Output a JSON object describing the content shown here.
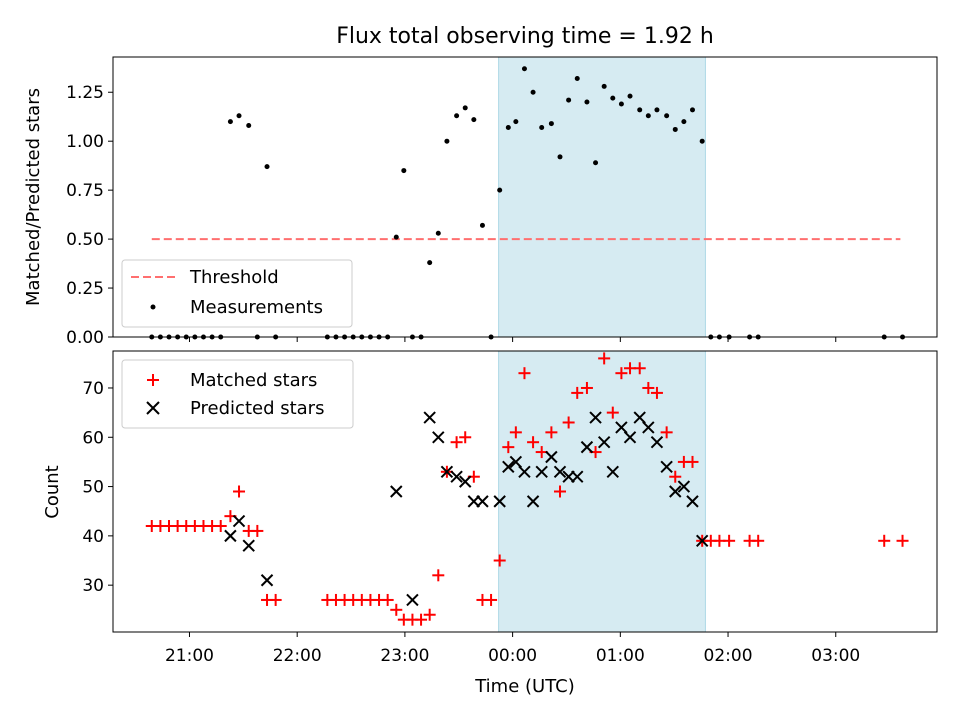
{
  "figure": {
    "title": "Flux total observing time = 1.92 h",
    "xlabel": "Time (UTC)",
    "x_ticks": [
      "21:00",
      "22:00",
      "23:00",
      "00:00",
      "01:00",
      "02:00",
      "03:00"
    ],
    "x_tick_hours": [
      21,
      22,
      23,
      24,
      25,
      26,
      27
    ],
    "x_range_hours": [
      20.29,
      27.94
    ],
    "shaded_interval_hours": [
      23.87,
      25.79
    ],
    "shade_color": "#add8e6"
  },
  "chart_data": [
    {
      "type": "scatter",
      "panel": "top",
      "ylabel": "Matched/Predicted stars",
      "ylim": [
        0,
        1.43
      ],
      "y_ticks": [
        "0.00",
        "0.25",
        "0.50",
        "0.75",
        "1.00",
        "1.25"
      ],
      "y_tick_values": [
        0,
        0.25,
        0.5,
        0.75,
        1.0,
        1.25
      ],
      "legend": {
        "placement": "lower-left",
        "threshold_label": "Threshold",
        "measurements_label": "Measurements"
      },
      "threshold": {
        "name": "Threshold",
        "value": 0.5,
        "x_range": [
          20.65,
          27.6
        ],
        "color": "#ff6f6f",
        "style": "dashed"
      },
      "series": [
        {
          "name": "Measurements",
          "color": "#000000",
          "points": [
            [
              20.65,
              0
            ],
            [
              20.73,
              0
            ],
            [
              20.81,
              0
            ],
            [
              20.89,
              0
            ],
            [
              20.97,
              0
            ],
            [
              21.05,
              0
            ],
            [
              21.13,
              0
            ],
            [
              21.21,
              0
            ],
            [
              21.29,
              0
            ],
            [
              21.38,
              1.1
            ],
            [
              21.46,
              1.13
            ],
            [
              21.55,
              1.08
            ],
            [
              21.63,
              0
            ],
            [
              21.72,
              0.87
            ],
            [
              21.8,
              0
            ],
            [
              22.28,
              0
            ],
            [
              22.36,
              0
            ],
            [
              22.44,
              0
            ],
            [
              22.52,
              0
            ],
            [
              22.6,
              0
            ],
            [
              22.68,
              0
            ],
            [
              22.76,
              0
            ],
            [
              22.84,
              0
            ],
            [
              22.92,
              0.51
            ],
            [
              22.99,
              0.85
            ],
            [
              23.07,
              0
            ],
            [
              23.15,
              0
            ],
            [
              23.23,
              0.38
            ],
            [
              23.31,
              0.53
            ],
            [
              23.39,
              1.0
            ],
            [
              23.48,
              1.13
            ],
            [
              23.56,
              1.17
            ],
            [
              23.64,
              1.11
            ],
            [
              23.72,
              0.57
            ],
            [
              23.8,
              0
            ],
            [
              23.88,
              0.75
            ],
            [
              23.96,
              1.07
            ],
            [
              24.03,
              1.1
            ],
            [
              24.11,
              1.37
            ],
            [
              24.19,
              1.25
            ],
            [
              24.27,
              1.07
            ],
            [
              24.36,
              1.09
            ],
            [
              24.44,
              0.92
            ],
            [
              24.52,
              1.21
            ],
            [
              24.6,
              1.32
            ],
            [
              24.69,
              1.2
            ],
            [
              24.77,
              0.89
            ],
            [
              24.85,
              1.28
            ],
            [
              24.93,
              1.22
            ],
            [
              25.01,
              1.19
            ],
            [
              25.09,
              1.23
            ],
            [
              25.18,
              1.16
            ],
            [
              25.26,
              1.13
            ],
            [
              25.34,
              1.16
            ],
            [
              25.43,
              1.13
            ],
            [
              25.51,
              1.06
            ],
            [
              25.59,
              1.1
            ],
            [
              25.67,
              1.16
            ],
            [
              25.76,
              1.0
            ],
            [
              25.84,
              0
            ],
            [
              25.92,
              0
            ],
            [
              26.01,
              0
            ],
            [
              26.2,
              0
            ],
            [
              26.28,
              0
            ],
            [
              27.45,
              0
            ],
            [
              27.62,
              0
            ]
          ]
        }
      ]
    },
    {
      "type": "scatter",
      "panel": "bottom",
      "ylabel": "Count",
      "ylim": [
        20.5,
        77.5
      ],
      "y_ticks": [
        "30",
        "40",
        "50",
        "60",
        "70"
      ],
      "y_tick_values": [
        30,
        40,
        50,
        60,
        70
      ],
      "legend": {
        "placement": "upper-left",
        "matched_label": "Matched stars",
        "predicted_label": "Predicted stars"
      },
      "series": [
        {
          "name": "Matched stars",
          "marker": "plus",
          "color": "#ff0000",
          "points": [
            [
              20.65,
              42
            ],
            [
              20.73,
              42
            ],
            [
              20.81,
              42
            ],
            [
              20.89,
              42
            ],
            [
              20.97,
              42
            ],
            [
              21.05,
              42
            ],
            [
              21.13,
              42
            ],
            [
              21.21,
              42
            ],
            [
              21.29,
              42
            ],
            [
              21.38,
              44
            ],
            [
              21.46,
              49
            ],
            [
              21.55,
              41
            ],
            [
              21.63,
              41
            ],
            [
              21.72,
              27
            ],
            [
              21.8,
              27
            ],
            [
              22.28,
              27
            ],
            [
              22.36,
              27
            ],
            [
              22.44,
              27
            ],
            [
              22.52,
              27
            ],
            [
              22.6,
              27
            ],
            [
              22.68,
              27
            ],
            [
              22.76,
              27
            ],
            [
              22.84,
              27
            ],
            [
              22.92,
              25
            ],
            [
              22.99,
              23
            ],
            [
              23.07,
              23
            ],
            [
              23.15,
              23
            ],
            [
              23.23,
              24
            ],
            [
              23.31,
              32
            ],
            [
              23.39,
              53
            ],
            [
              23.48,
              59
            ],
            [
              23.56,
              60
            ],
            [
              23.64,
              52
            ],
            [
              23.72,
              27
            ],
            [
              23.8,
              27
            ],
            [
              23.88,
              35
            ],
            [
              23.96,
              58
            ],
            [
              24.03,
              61
            ],
            [
              24.11,
              73
            ],
            [
              24.19,
              59
            ],
            [
              24.27,
              57
            ],
            [
              24.36,
              61
            ],
            [
              24.44,
              49
            ],
            [
              24.52,
              63
            ],
            [
              24.6,
              69
            ],
            [
              24.69,
              70
            ],
            [
              24.77,
              57
            ],
            [
              24.85,
              76
            ],
            [
              24.93,
              65
            ],
            [
              25.01,
              73
            ],
            [
              25.09,
              74
            ],
            [
              25.18,
              74
            ],
            [
              25.26,
              70
            ],
            [
              25.34,
              69
            ],
            [
              25.43,
              61
            ],
            [
              25.51,
              52
            ],
            [
              25.59,
              55
            ],
            [
              25.67,
              55
            ],
            [
              25.76,
              39
            ],
            [
              25.84,
              39
            ],
            [
              25.92,
              39
            ],
            [
              26.01,
              39
            ],
            [
              26.2,
              39
            ],
            [
              26.28,
              39
            ],
            [
              27.45,
              39
            ],
            [
              27.62,
              39
            ]
          ]
        },
        {
          "name": "Predicted stars",
          "marker": "x",
          "color": "#000000",
          "points": [
            [
              21.38,
              40
            ],
            [
              21.46,
              43
            ],
            [
              21.55,
              38
            ],
            [
              21.72,
              31
            ],
            [
              22.92,
              49
            ],
            [
              23.07,
              27
            ],
            [
              23.23,
              64
            ],
            [
              23.31,
              60
            ],
            [
              23.39,
              53
            ],
            [
              23.48,
              52
            ],
            [
              23.56,
              51
            ],
            [
              23.64,
              47
            ],
            [
              23.72,
              47
            ],
            [
              23.88,
              47
            ],
            [
              23.96,
              54
            ],
            [
              24.03,
              55
            ],
            [
              24.11,
              53
            ],
            [
              24.19,
              47
            ],
            [
              24.27,
              53
            ],
            [
              24.36,
              56
            ],
            [
              24.44,
              53
            ],
            [
              24.52,
              52
            ],
            [
              24.6,
              52
            ],
            [
              24.69,
              58
            ],
            [
              24.77,
              64
            ],
            [
              24.85,
              59
            ],
            [
              24.93,
              53
            ],
            [
              25.01,
              62
            ],
            [
              25.09,
              60
            ],
            [
              25.18,
              64
            ],
            [
              25.26,
              62
            ],
            [
              25.34,
              59
            ],
            [
              25.43,
              54
            ],
            [
              25.51,
              49
            ],
            [
              25.59,
              50
            ],
            [
              25.67,
              47
            ],
            [
              25.76,
              39
            ]
          ]
        }
      ]
    }
  ]
}
